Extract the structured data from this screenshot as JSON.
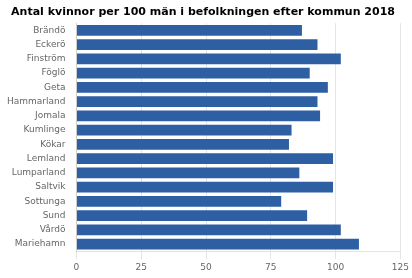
{
  "chart_data": {
    "type": "bar",
    "orientation": "horizontal",
    "title": "Antal kvinnor per 100 män i befolkningen efter kommun 2018",
    "categories": [
      "Brändö",
      "Eckerö",
      "Finström",
      "Föglö",
      "Geta",
      "Hammarland",
      "Jomala",
      "Kumlinge",
      "Kökar",
      "Lemland",
      "Lumparland",
      "Saltvik",
      "Sottunga",
      "Sund",
      "Vårdö",
      "Mariehamn"
    ],
    "values": [
      87,
      93,
      102,
      90,
      97,
      93,
      94,
      83,
      82,
      99,
      86,
      99,
      79,
      89,
      102,
      109
    ],
    "color": "#2E5FA3",
    "xlim": [
      0,
      125
    ],
    "xticks": [
      0,
      25,
      50,
      75,
      100,
      125
    ],
    "grid": true
  }
}
